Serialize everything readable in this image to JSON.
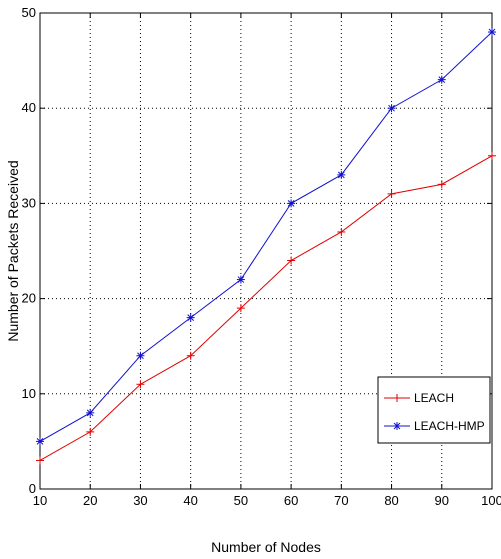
{
  "chart_data": {
    "type": "line",
    "xlabel": "Number of Nodes",
    "ylabel": "Number of Packets Received",
    "x": [
      10,
      20,
      30,
      40,
      50,
      60,
      70,
      80,
      90,
      100
    ],
    "xlim": [
      10,
      100
    ],
    "ylim": [
      0,
      50
    ],
    "xticks": [
      10,
      20,
      30,
      40,
      50,
      60,
      70,
      80,
      90,
      100
    ],
    "yticks": [
      0,
      10,
      20,
      30,
      40,
      50
    ],
    "grid": true,
    "legend_position": "bottom-right",
    "series": [
      {
        "name": "LEACH",
        "color": "#e00000",
        "marker": "+",
        "values": [
          3,
          6,
          11,
          14,
          19,
          24,
          27,
          31,
          32,
          35
        ]
      },
      {
        "name": "LEACH-HMP",
        "color": "#1010d0",
        "marker": "*",
        "values": [
          5,
          8,
          14,
          18,
          22,
          30,
          33,
          40,
          43,
          48
        ]
      }
    ]
  }
}
